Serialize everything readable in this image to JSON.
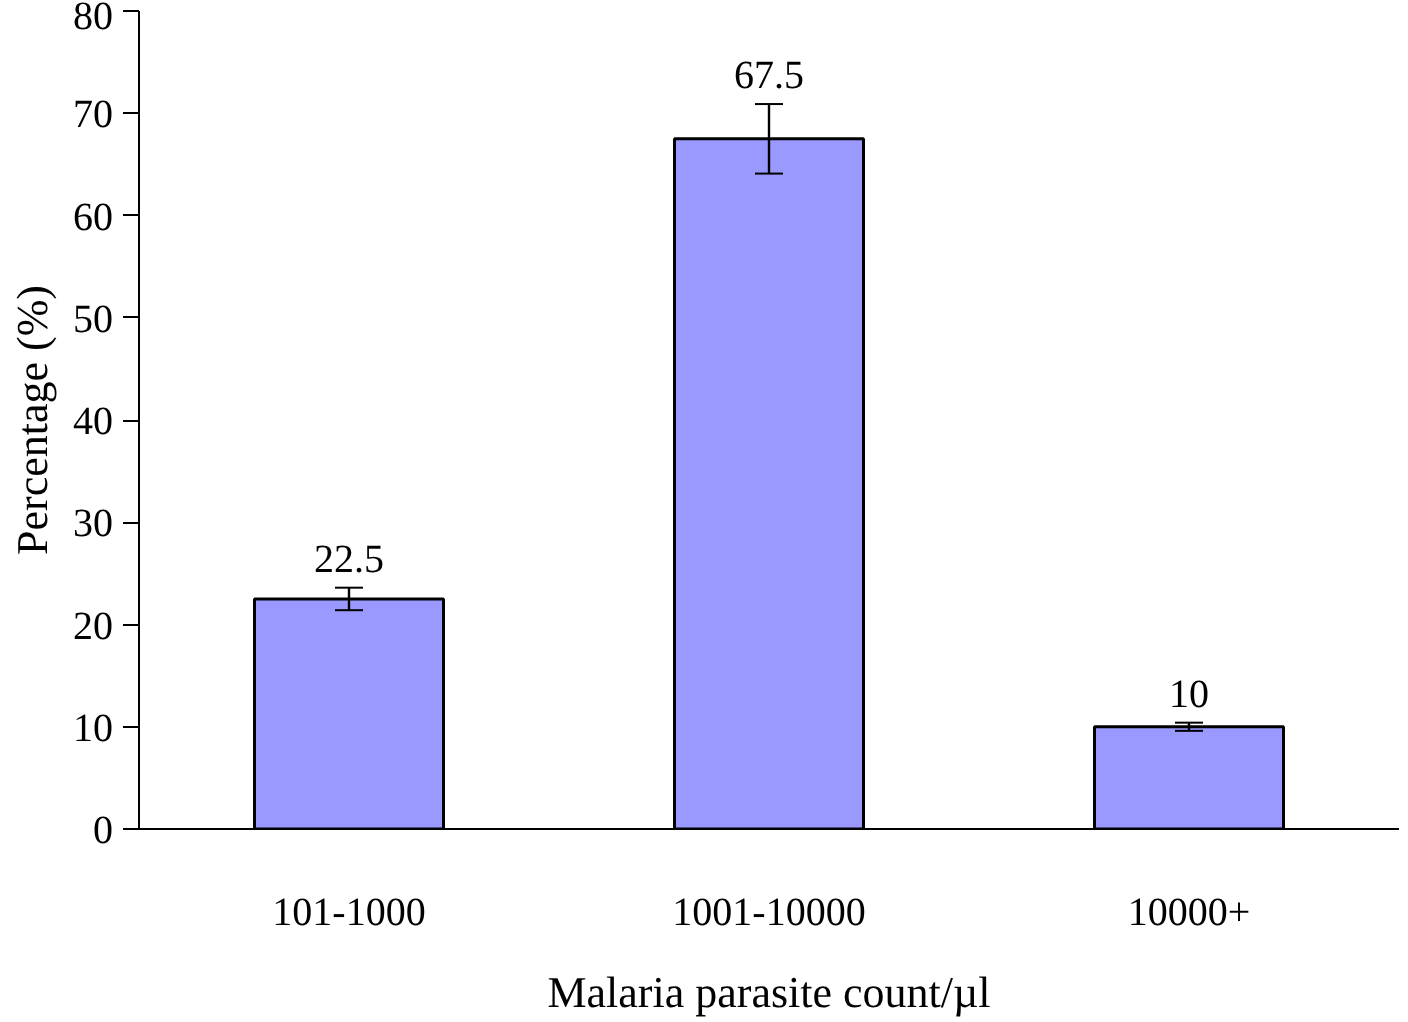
{
  "chart_data": {
    "type": "bar",
    "xlabel": "Malaria parasite count/µl",
    "ylabel": "Percentage (%)",
    "categories": [
      "101-1000",
      "1001-10000",
      "10000+"
    ],
    "values": [
      22.5,
      67.5,
      10
    ],
    "errors": [
      1.1,
      3.4,
      0.4
    ],
    "color": "#9999ff",
    "data_labels": true,
    "ylim": [
      0,
      80
    ],
    "yticks": [
      0,
      10,
      20,
      30,
      40,
      50,
      60,
      70,
      80
    ]
  }
}
